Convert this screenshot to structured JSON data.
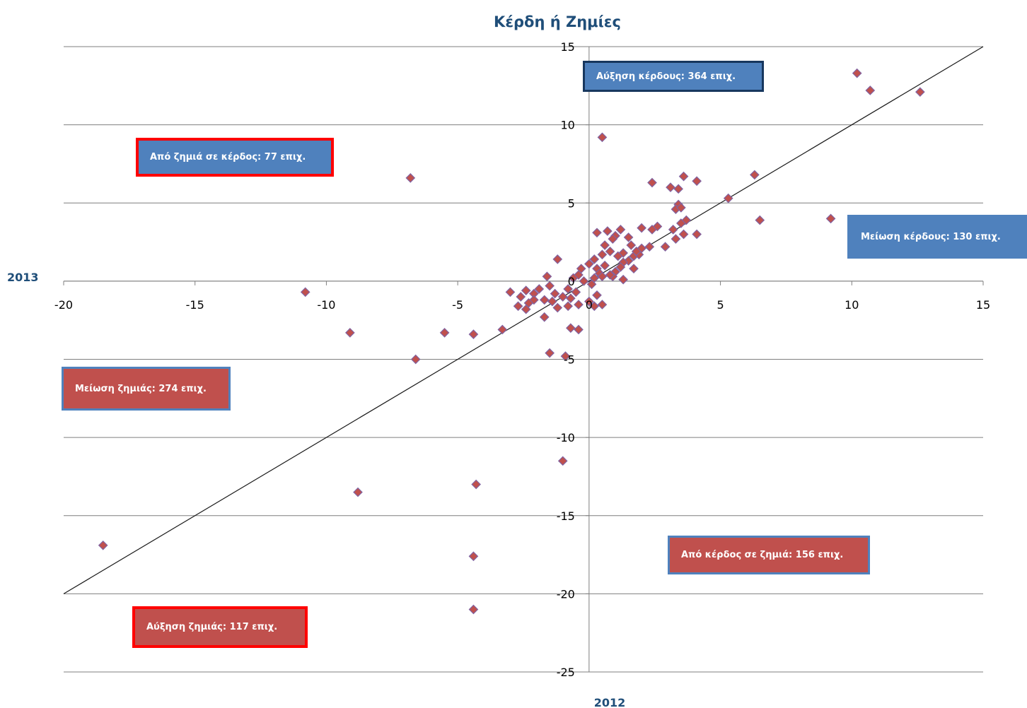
{
  "chart_data": {
    "type": "scatter",
    "title": "Κέρδη ή Ζημίες",
    "xlabel": "2012",
    "ylabel": "2013",
    "xlim": [
      -20,
      15
    ],
    "ylim": [
      -25,
      15
    ],
    "xticks": [
      -20,
      -15,
      -10,
      -5,
      0,
      5,
      10,
      15
    ],
    "yticks": [
      -25,
      -20,
      -15,
      -10,
      -5,
      0,
      5,
      10,
      15
    ],
    "grid": "horizontal",
    "reference_line": "y = x",
    "annotations": [
      {
        "text": "Αύξηση κέρδους: 364 επιχ.",
        "fill": "#4f81bd",
        "border": "#17375e"
      },
      {
        "text": "Από ζημιά σε κέρδος: 77 επιχ.",
        "fill": "#4f81bd",
        "border": "#ff0000"
      },
      {
        "text": "Μείωση κέρδους: 130 επιχ.",
        "fill": "#4f81bd",
        "border": "#4f81bd"
      },
      {
        "text": "Μείωση ζημιάς:  274 επιχ.",
        "fill": "#c0504d",
        "border": "#4f81bd"
      },
      {
        "text": "Από κέρδος σε ζημιά:  156 επιχ.",
        "fill": "#c0504d",
        "border": "#4f81bd"
      },
      {
        "text": "Αύξηση ζημιάς: 117 επιχ.",
        "fill": "#c0504d",
        "border": "#ff0000"
      }
    ],
    "points": [
      [
        10.2,
        13.3
      ],
      [
        10.7,
        12.2
      ],
      [
        12.6,
        12.1
      ],
      [
        0.5,
        9.2
      ],
      [
        -6.8,
        6.6
      ],
      [
        2.4,
        6.3
      ],
      [
        3.1,
        6.0
      ],
      [
        3.4,
        5.9
      ],
      [
        3.6,
        6.7
      ],
      [
        4.1,
        6.4
      ],
      [
        6.3,
        6.8
      ],
      [
        5.3,
        5.3
      ],
      [
        3.4,
        4.9
      ],
      [
        3.3,
        4.6
      ],
      [
        3.5,
        4.7
      ],
      [
        3.7,
        3.9
      ],
      [
        3.5,
        3.7
      ],
      [
        9.2,
        4.0
      ],
      [
        6.5,
        3.9
      ],
      [
        3.2,
        3.3
      ],
      [
        2.6,
        3.5
      ],
      [
        2.0,
        3.4
      ],
      [
        2.4,
        3.3
      ],
      [
        3.6,
        3.0
      ],
      [
        4.1,
        3.0
      ],
      [
        3.3,
        2.7
      ],
      [
        2.9,
        2.2
      ],
      [
        1.2,
        3.3
      ],
      [
        0.7,
        3.2
      ],
      [
        0.3,
        3.1
      ],
      [
        1.0,
        2.9
      ],
      [
        1.5,
        2.8
      ],
      [
        1.6,
        2.3
      ],
      [
        2.0,
        2.1
      ],
      [
        2.3,
        2.2
      ],
      [
        0.9,
        2.7
      ],
      [
        0.6,
        2.3
      ],
      [
        0.8,
        1.9
      ],
      [
        1.3,
        1.8
      ],
      [
        1.7,
        1.6
      ],
      [
        1.9,
        1.7
      ],
      [
        1.5,
        1.3
      ],
      [
        1.8,
        1.9
      ],
      [
        0.5,
        1.7
      ],
      [
        1.1,
        1.6
      ],
      [
        1.3,
        1.2
      ],
      [
        1.7,
        0.8
      ],
      [
        1.0,
        0.6
      ],
      [
        1.2,
        0.9
      ],
      [
        0.9,
        0.3
      ],
      [
        1.3,
        0.1
      ],
      [
        0.2,
        1.4
      ],
      [
        0.0,
        1.1
      ],
      [
        0.3,
        0.8
      ],
      [
        0.6,
        1.0
      ],
      [
        0.4,
        0.5
      ],
      [
        0.8,
        0.4
      ],
      [
        0.2,
        0.2
      ],
      [
        0.5,
        0.3
      ],
      [
        -0.3,
        0.8
      ],
      [
        -0.4,
        0.4
      ],
      [
        -0.6,
        0.2
      ],
      [
        -0.2,
        0.0
      ],
      [
        0.1,
        -0.2
      ],
      [
        -0.8,
        -0.5
      ],
      [
        -0.5,
        -0.7
      ],
      [
        -1.2,
        1.4
      ],
      [
        -1.6,
        0.3
      ],
      [
        -1.5,
        -0.3
      ],
      [
        -1.9,
        -0.5
      ],
      [
        -2.1,
        -0.8
      ],
      [
        -2.4,
        -0.6
      ],
      [
        -1.3,
        -0.8
      ],
      [
        -1.0,
        -1.0
      ],
      [
        -1.4,
        -1.3
      ],
      [
        -1.7,
        -1.2
      ],
      [
        -2.1,
        -1.2
      ],
      [
        -2.6,
        -1.0
      ],
      [
        -3.0,
        -0.7
      ],
      [
        -2.3,
        -1.4
      ],
      [
        -2.4,
        -1.8
      ],
      [
        -2.7,
        -1.6
      ],
      [
        -1.7,
        -2.3
      ],
      [
        -1.2,
        -1.7
      ],
      [
        -0.8,
        -1.6
      ],
      [
        -0.4,
        -1.5
      ],
      [
        0.0,
        -1.3
      ],
      [
        0.3,
        -0.9
      ],
      [
        0.2,
        -1.6
      ],
      [
        0.5,
        -1.5
      ],
      [
        -0.7,
        -1.1
      ],
      [
        -3.3,
        -3.1
      ],
      [
        -0.7,
        -3.0
      ],
      [
        -0.4,
        -3.1
      ],
      [
        -1.5,
        -4.6
      ],
      [
        -0.9,
        -4.8
      ],
      [
        -5.5,
        -3.3
      ],
      [
        -4.4,
        -3.4
      ],
      [
        -9.1,
        -3.3
      ],
      [
        -6.6,
        -5.0
      ],
      [
        -10.8,
        -0.7
      ],
      [
        -1.0,
        -11.5
      ],
      [
        -4.3,
        -13.0
      ],
      [
        -8.8,
        -13.5
      ],
      [
        -18.5,
        -16.9
      ],
      [
        -4.4,
        -17.6
      ],
      [
        -4.4,
        -21.0
      ]
    ]
  }
}
